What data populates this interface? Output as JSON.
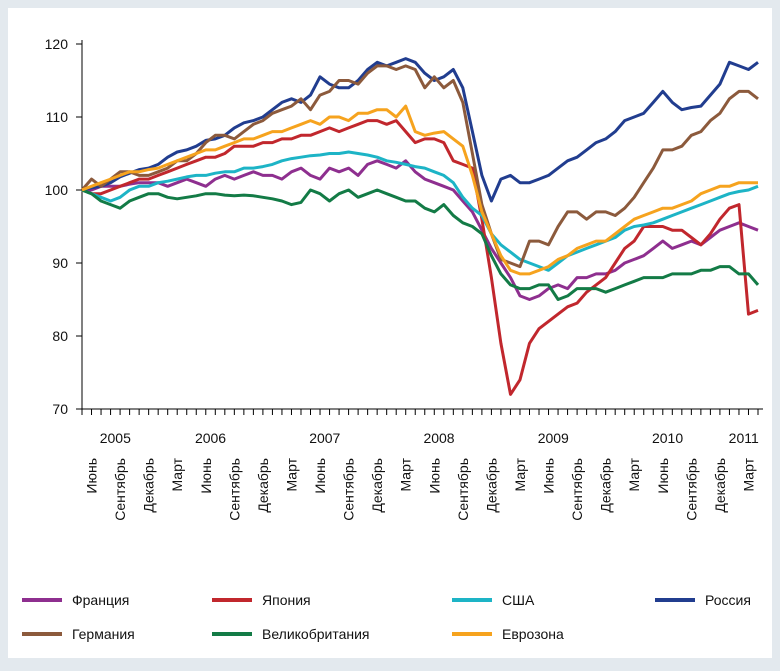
{
  "chart_data": {
    "type": "line",
    "categories": [
      null,
      "Июнь",
      null,
      null,
      "Сентябрь",
      null,
      null,
      "Декабрь",
      null,
      null,
      "Март",
      null,
      null,
      "Июнь",
      null,
      null,
      "Сентябрь",
      null,
      null,
      "Декабрь",
      null,
      null,
      "Март",
      null,
      null,
      "Июнь",
      null,
      null,
      "Сентябрь",
      null,
      null,
      "Декабрь",
      null,
      null,
      "Март",
      null,
      null,
      "Июнь",
      null,
      null,
      "Сентябрь",
      null,
      null,
      "Декабрь",
      null,
      null,
      "Март",
      null,
      null,
      "Июнь",
      null,
      null,
      "Сентябрь",
      null,
      null,
      "Декабрь",
      null,
      null,
      "Март",
      null,
      null,
      "Июнь",
      null,
      null,
      "Сентябрь",
      null,
      null,
      "Декабрь",
      null,
      null,
      "Март",
      null
    ],
    "years": [
      "2005",
      "2006",
      "2007",
      "2008",
      "2009",
      "2010",
      "2011"
    ],
    "ylim": [
      70,
      120
    ],
    "yticks": [
      70,
      80,
      90,
      100,
      110,
      120
    ],
    "grid": false,
    "series": [
      {
        "name": "Франция",
        "color": "#8e2f8f",
        "values": [
          100,
          100,
          100.5,
          100.5,
          100.5,
          100.8,
          101,
          101,
          101,
          100.5,
          101,
          101.5,
          101,
          100.5,
          101.5,
          102,
          101.5,
          102,
          102.5,
          102,
          102,
          101.5,
          102.5,
          103,
          102,
          101.5,
          103,
          102.5,
          103,
          102,
          103.5,
          104,
          103.5,
          103,
          104,
          102.5,
          101.5,
          101,
          100.5,
          100,
          98.5,
          97,
          94.5,
          92,
          90,
          88,
          85.5,
          85,
          85.5,
          86.5,
          87,
          86.5,
          88,
          88,
          88.5,
          88.5,
          89,
          90,
          90.5,
          91,
          92,
          93,
          92,
          92.5,
          93,
          92.5,
          93.5,
          94.5,
          95,
          95.5,
          95,
          94.5
        ]
      },
      {
        "name": "Япония",
        "color": "#c1272d",
        "values": [
          100,
          99.5,
          99.5,
          100,
          100.5,
          101,
          101.5,
          101.5,
          102,
          102.5,
          103,
          103.5,
          104,
          104.5,
          104.5,
          105,
          106,
          106,
          106,
          106.5,
          106.5,
          107,
          107,
          107.5,
          107.5,
          108,
          108.5,
          108,
          108.5,
          109,
          109.5,
          109.5,
          109,
          109.5,
          108,
          106.5,
          107,
          107,
          106.5,
          104,
          103.5,
          103,
          96,
          88,
          79,
          72,
          74,
          79,
          81,
          82,
          83,
          84,
          84.5,
          86,
          87,
          88,
          90,
          92,
          93,
          95,
          95,
          95,
          94.5,
          94.5,
          93.5,
          92.5,
          94,
          96,
          97.5,
          98,
          83,
          83.5
        ]
      },
      {
        "name": "США",
        "color": "#1db4c6",
        "values": [
          100,
          99.5,
          99,
          98.5,
          99,
          100,
          100.5,
          100.5,
          101,
          101.2,
          101.5,
          101.8,
          102,
          102,
          102.3,
          102.5,
          102.5,
          103,
          103,
          103.2,
          103.5,
          104,
          104.3,
          104.5,
          104.7,
          104.8,
          105,
          105,
          105.2,
          105,
          104.8,
          104.5,
          104,
          103.8,
          103.5,
          103.2,
          103,
          102.5,
          102,
          101,
          99,
          97.5,
          96.5,
          94,
          92.5,
          91.5,
          90.5,
          90,
          89.5,
          89,
          90,
          91,
          91.5,
          92,
          92.5,
          93,
          93.5,
          94.5,
          95,
          95.2,
          95.5,
          96,
          96.5,
          97,
          97.5,
          98,
          98.5,
          99,
          99.5,
          99.8,
          100,
          100.5
        ]
      },
      {
        "name": "Россия",
        "color": "#213d8f",
        "values": [
          100,
          100.3,
          100.5,
          101,
          101.8,
          102.3,
          102.8,
          103,
          103.5,
          104.5,
          105.2,
          105.5,
          106,
          106.8,
          107,
          107.5,
          108.5,
          109.2,
          109.5,
          110,
          111,
          112,
          112.5,
          112,
          113,
          115.5,
          114.5,
          114,
          114,
          115,
          116.5,
          117.5,
          117,
          117.5,
          118,
          117.5,
          116,
          115,
          115.5,
          116.5,
          114,
          108,
          102,
          98.5,
          101.5,
          102,
          101,
          101,
          101.5,
          102,
          103,
          104,
          104.5,
          105.5,
          106.5,
          107,
          108,
          109.5,
          110,
          110.5,
          112,
          113.5,
          112,
          111,
          111.3,
          111.5,
          113,
          114.5,
          117.5,
          117,
          116.5,
          117.5
        ]
      },
      {
        "name": "Германия",
        "color": "#8c5a3c",
        "values": [
          100,
          101.5,
          100.5,
          101.5,
          102.5,
          102.5,
          102,
          102,
          102.5,
          103,
          104,
          104,
          105,
          106.5,
          107.5,
          107.5,
          107,
          108,
          109,
          109.5,
          110.5,
          111,
          111.5,
          112.5,
          111,
          113,
          113.5,
          115,
          115,
          114.5,
          116,
          117,
          117,
          116.5,
          117,
          116.5,
          114,
          115.5,
          114,
          115,
          112,
          105,
          98,
          94,
          90.5,
          90,
          89.5,
          93,
          93,
          92.5,
          95,
          97,
          97,
          96,
          97,
          97,
          96.5,
          97.5,
          99,
          101,
          103,
          105.5,
          105.5,
          106,
          107.5,
          108,
          109.5,
          110.5,
          112.5,
          113.5,
          113.5,
          112.5
        ]
      },
      {
        "name": "Великобритания",
        "color": "#137b46",
        "values": [
          100,
          99.5,
          98.5,
          98,
          97.5,
          98.5,
          99,
          99.5,
          99.5,
          99,
          98.8,
          99,
          99.2,
          99.5,
          99.5,
          99.3,
          99.2,
          99.3,
          99.2,
          99,
          98.8,
          98.5,
          98,
          98.3,
          100,
          99.5,
          98.5,
          99.5,
          100,
          99,
          99.5,
          100,
          99.5,
          99,
          98.5,
          98.5,
          97.5,
          97,
          98,
          96.5,
          95.5,
          95,
          94,
          91,
          88.5,
          87,
          86.5,
          86.5,
          87,
          87,
          85,
          85.5,
          86.5,
          86.5,
          86.5,
          86,
          86.5,
          87,
          87.5,
          88,
          88,
          88,
          88.5,
          88.5,
          88.5,
          89,
          89,
          89.5,
          89.5,
          88.5,
          88.5,
          87
        ]
      },
      {
        "name": "Еврозона",
        "color": "#f6a31e",
        "values": [
          100,
          100.5,
          101,
          101.5,
          102,
          102.5,
          102.5,
          102.8,
          103,
          103.5,
          104,
          104.5,
          105,
          105.5,
          105.5,
          106,
          106.5,
          107,
          107,
          107.5,
          108,
          108,
          108.5,
          109,
          109.5,
          109,
          110,
          110,
          109.5,
          110.5,
          110.5,
          111,
          111,
          110,
          111.5,
          108,
          107.5,
          107.8,
          108,
          107,
          106,
          102,
          97,
          94,
          91,
          89,
          88.5,
          88.5,
          89,
          89.5,
          90.5,
          91,
          92,
          92.5,
          93,
          93,
          94,
          95,
          96,
          96.5,
          97,
          97.5,
          97.5,
          98,
          98.5,
          99.5,
          100,
          100.5,
          100.5,
          101,
          101,
          101
        ]
      }
    ]
  }
}
